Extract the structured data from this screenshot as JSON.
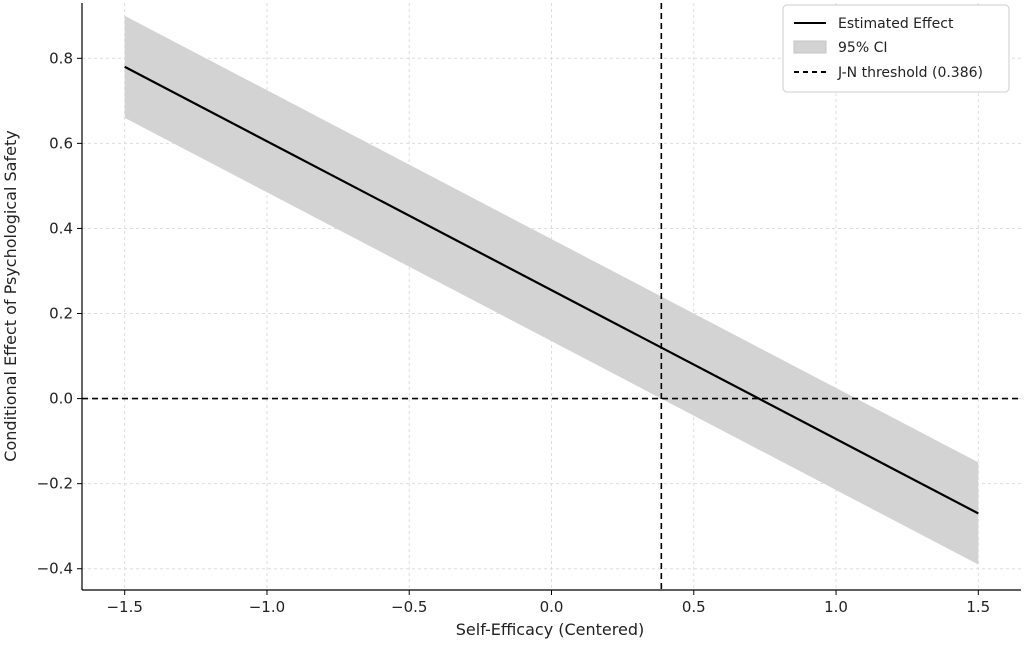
{
  "chart_data": {
    "type": "line",
    "xlabel": "Self-Efficacy (Centered)",
    "ylabel": "Conditional Effect of Psychological Safety",
    "xlim": [
      -1.65,
      1.65
    ],
    "ylim": [
      -0.45,
      0.93
    ],
    "xticks": [
      -1.5,
      -1.0,
      -0.5,
      0.0,
      0.5,
      1.0,
      1.5
    ],
    "xtick_labels": [
      "−1.5",
      "−1.0",
      "−0.5",
      "0.0",
      "0.5",
      "1.0",
      "1.5"
    ],
    "yticks": [
      -0.4,
      -0.2,
      0.0,
      0.2,
      0.4,
      0.6,
      0.8
    ],
    "ytick_labels": [
      "−0.4",
      "−0.2",
      "0.0",
      "0.2",
      "0.4",
      "0.6",
      "0.8"
    ],
    "grid": true,
    "legend_position": "top-right",
    "series": [
      {
        "name": "Estimated Effect",
        "kind": "line",
        "x": [
          -1.5,
          1.5
        ],
        "y": [
          0.78,
          -0.27
        ],
        "color": "#000000"
      },
      {
        "name": "95% CI",
        "kind": "band",
        "x": [
          -1.5,
          1.5
        ],
        "lower": [
          0.66,
          -0.39
        ],
        "upper": [
          0.9,
          -0.15
        ],
        "color": "#d3d3d3"
      },
      {
        "name": "J-N threshold (0.386)",
        "kind": "vline",
        "x": 0.386,
        "color": "#000000"
      }
    ],
    "reference_lines": [
      {
        "orientation": "horizontal",
        "y": 0.0,
        "style": "dashed"
      }
    ]
  }
}
